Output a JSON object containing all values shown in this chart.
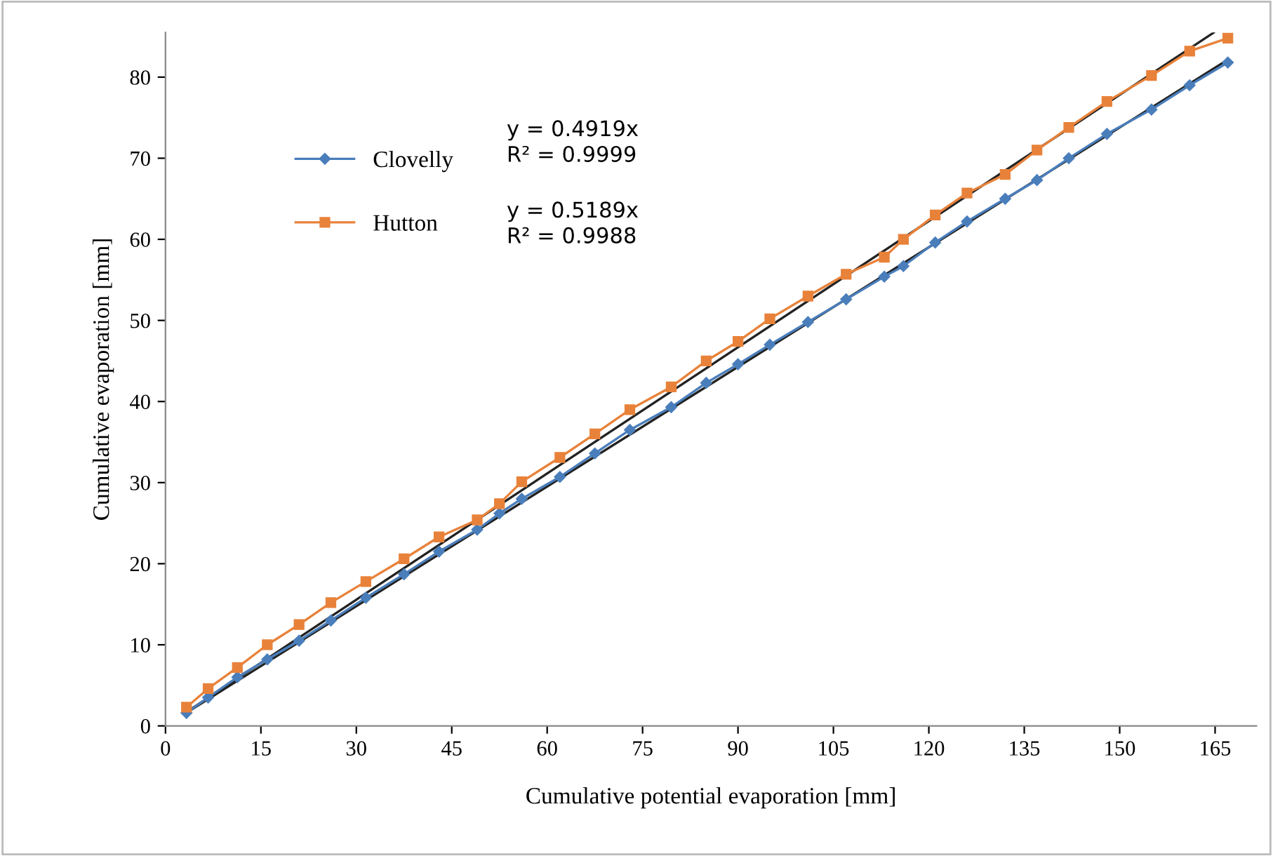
{
  "chart_data": {
    "type": "line",
    "xlabel": "Cumulative potential evaporation [mm]",
    "ylabel": "Cumulative evaporation [mm]",
    "xlim": [
      0,
      171.5
    ],
    "ylim": [
      0,
      85.5
    ],
    "xticks": [
      0,
      15,
      30,
      45,
      60,
      75,
      90,
      105,
      120,
      135,
      150,
      165
    ],
    "yticks": [
      0,
      10,
      20,
      30,
      40,
      50,
      60,
      70,
      80
    ],
    "grid": false,
    "legend": "top left",
    "annotations": [
      "y = 0.4919x\nR² = 0.9999",
      "y = 0.5189x\nR² = 0.9988"
    ],
    "series": [
      {
        "name": "Clovelly",
        "color": "#4a7ebb",
        "marker": "diamond",
        "x": [
          3.3,
          6.7,
          11.3,
          16,
          21,
          26,
          31.5,
          37.5,
          43,
          49,
          52.5,
          56,
          62,
          67.5,
          73,
          79.5,
          85,
          90,
          95,
          101,
          107,
          113,
          116,
          121,
          126,
          132,
          137,
          142,
          148,
          155,
          161,
          167
        ],
        "values": [
          1.6,
          3.5,
          6,
          8.2,
          10.5,
          13,
          15.8,
          18.7,
          21.5,
          24.2,
          26.2,
          28,
          30.7,
          33.6,
          36.5,
          39.3,
          42.3,
          44.6,
          47,
          49.8,
          52.6,
          55.4,
          56.7,
          59.6,
          62.2,
          65,
          67.3,
          70,
          73,
          76,
          79,
          81.8
        ]
      },
      {
        "name": "Hutton",
        "color": "#e8823a",
        "marker": "square",
        "x": [
          3.3,
          6.7,
          11.3,
          16,
          21,
          26,
          31.5,
          37.5,
          43,
          49,
          52.5,
          56,
          62,
          67.5,
          73,
          79.5,
          85,
          90,
          95,
          101,
          107,
          113,
          116,
          121,
          126,
          132,
          137,
          142,
          148,
          155,
          161,
          167
        ],
        "values": [
          2.3,
          4.6,
          7.2,
          10,
          12.5,
          15.2,
          17.8,
          20.6,
          23.3,
          25.4,
          27.4,
          30.1,
          33.1,
          36,
          39,
          41.8,
          45,
          47.4,
          50.2,
          53,
          55.7,
          57.8,
          60,
          63,
          65.7,
          68,
          71,
          73.8,
          77,
          80.2,
          83.2,
          84.8
        ]
      },
      {
        "color": "#222222",
        "marker": "none",
        "x": [
          3.3,
          167
        ],
        "values": [
          1.62,
          82.15
        ]
      },
      {
        "color": "#222222",
        "marker": "none",
        "x": [
          3.3,
          164.8
        ],
        "values": [
          1.71,
          85.5
        ]
      }
    ]
  }
}
